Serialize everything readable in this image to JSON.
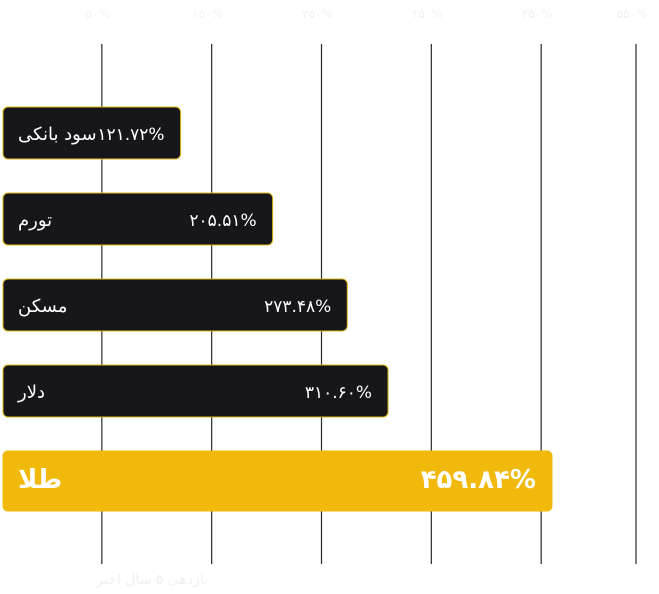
{
  "chart_data": {
    "type": "bar",
    "orientation": "horizontal",
    "categories": [
      "سود بانکی",
      "تورم",
      "مسکن",
      "دلار",
      "طلا"
    ],
    "values": [
      121.72,
      205.51,
      273.48,
      310.6,
      459.84
    ],
    "value_labels": [
      "۱۲۱.۷۲%",
      "۲۰۵.۵۱%",
      "۲۷۳.۴۸%",
      "۳۱۰.۶۰%",
      "۴۵۹.۸۴%"
    ],
    "highlight_index": 4,
    "xlim": [
      -50,
      550
    ],
    "xticks": [
      50,
      150,
      250,
      350,
      450,
      550
    ],
    "xtick_labels": [
      "۵۰%",
      "۱۵۰%",
      "۲۵۰%",
      "۳۵۰%",
      "۴۵۰%",
      "۵۵۰%"
    ],
    "grid": true,
    "caption": "بازدهی ۵ سال اخیر",
    "colors": {
      "bar": "#16161b",
      "bar_border": "#e2b714",
      "highlight": "#f0b90b",
      "grid": "#2a2a2a",
      "text": "#ffffff"
    }
  }
}
